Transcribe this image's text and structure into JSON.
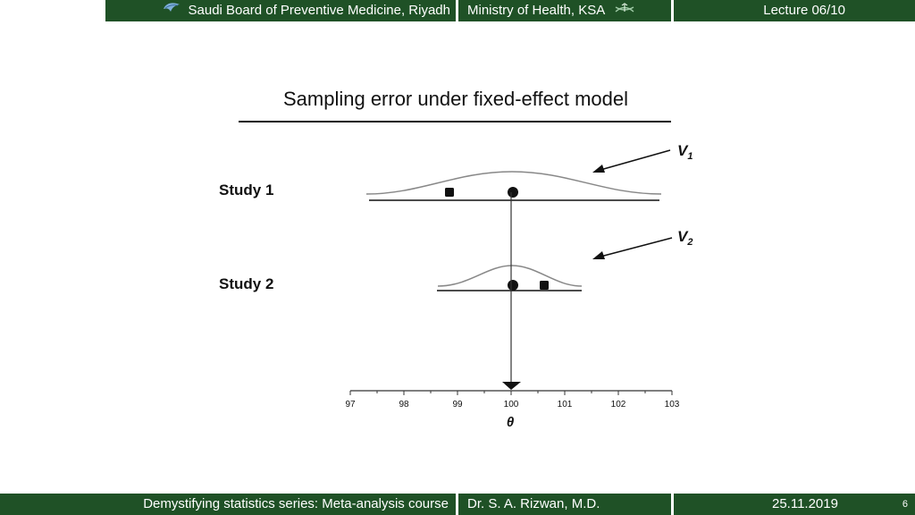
{
  "header": {
    "left": "Saudi Board of Preventive Medicine, Riyadh",
    "middle": "Ministry of Health, KSA",
    "right": "Lecture 06/10"
  },
  "footer": {
    "left": "Demystifying statistics series: Meta-analysis course",
    "middle": "Dr. S. A. Rizwan, M.D.",
    "date": "25.11.2019",
    "page": "6"
  },
  "figure": {
    "title": "Sampling error under fixed-effect model",
    "study1_label": "Study 1",
    "study2_label": "Study 2",
    "v1_label": "V",
    "v1_sub": "1",
    "v2_label": "V",
    "v2_sub": "2",
    "axis_label": "θ",
    "axis": {
      "min": 97,
      "max": 103,
      "ticks": [
        "97",
        "98",
        "99",
        "100",
        "101",
        "102",
        "103"
      ]
    },
    "true_effect": 100,
    "studies": [
      {
        "name": "Study 1",
        "observed": 98.8,
        "true": 100,
        "curve_width": "wide"
      },
      {
        "name": "Study 2",
        "observed": 100.6,
        "true": 100,
        "curve_width": "narrow"
      }
    ]
  },
  "colors": {
    "bar_green": "#1f5126"
  }
}
